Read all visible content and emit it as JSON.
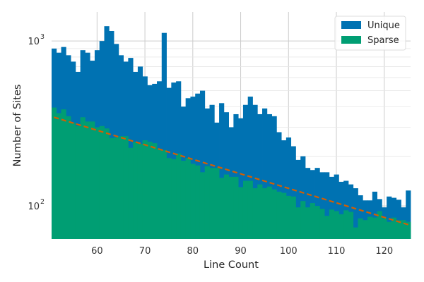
{
  "chart_data": {
    "type": "bar",
    "subtype": "histogram",
    "xlabel": "Line Count",
    "ylabel": "Number of Sites",
    "xlim": [
      50.5,
      125.5
    ],
    "ylim": [
      63,
      1500
    ],
    "yscale": "log",
    "grid": true,
    "legend_position": "top-right",
    "x_ticks": [
      60,
      70,
      80,
      90,
      100,
      110,
      120
    ],
    "x_tick_labels": [
      "60",
      "70",
      "80",
      "90",
      "100",
      "110",
      "120"
    ],
    "y_ticks": [
      1000,
      100
    ],
    "y_tick_labels": [
      {
        "base": "10",
        "exp": "3"
      },
      {
        "base": "10",
        "exp": "2"
      }
    ],
    "bin_width": 1,
    "bins_start": 51,
    "series": [
      {
        "name": "Unique",
        "color": "#0072b2",
        "values": [
          900,
          850,
          920,
          820,
          750,
          650,
          880,
          850,
          760,
          880,
          1000,
          1230,
          1150,
          960,
          820,
          750,
          790,
          650,
          700,
          610,
          540,
          550,
          570,
          1120,
          520,
          560,
          570,
          400,
          450,
          460,
          480,
          500,
          390,
          410,
          320,
          420,
          370,
          300,
          360,
          340,
          410,
          460,
          410,
          360,
          390,
          360,
          350,
          280,
          250,
          260,
          230,
          190,
          200,
          170,
          165,
          170,
          160,
          160,
          150,
          155,
          140,
          142,
          135,
          128,
          116,
          108,
          108,
          122,
          110,
          98,
          114,
          112,
          109,
          98,
          124
        ]
      },
      {
        "name": "Sparse",
        "color": "#009e73",
        "values": [
          395,
          365,
          385,
          350,
          320,
          305,
          345,
          325,
          325,
          300,
          305,
          295,
          258,
          260,
          265,
          265,
          225,
          245,
          238,
          250,
          245,
          240,
          222,
          218,
          195,
          192,
          208,
          188,
          195,
          180,
          176,
          160,
          174,
          170,
          170,
          148,
          155,
          150,
          150,
          130,
          142,
          142,
          128,
          135,
          128,
          131,
          126,
          122,
          120,
          115,
          114,
          98,
          107,
          98,
          104,
          100,
          96,
          87,
          95,
          93,
          89,
          94,
          92,
          74,
          84,
          82,
          86,
          85,
          93,
          84,
          80,
          85,
          82,
          82,
          80
        ]
      }
    ],
    "trend_line": {
      "color": "#d55e00",
      "style": "dashed",
      "x": [
        51,
        125
      ],
      "y": [
        345,
        77
      ]
    }
  }
}
